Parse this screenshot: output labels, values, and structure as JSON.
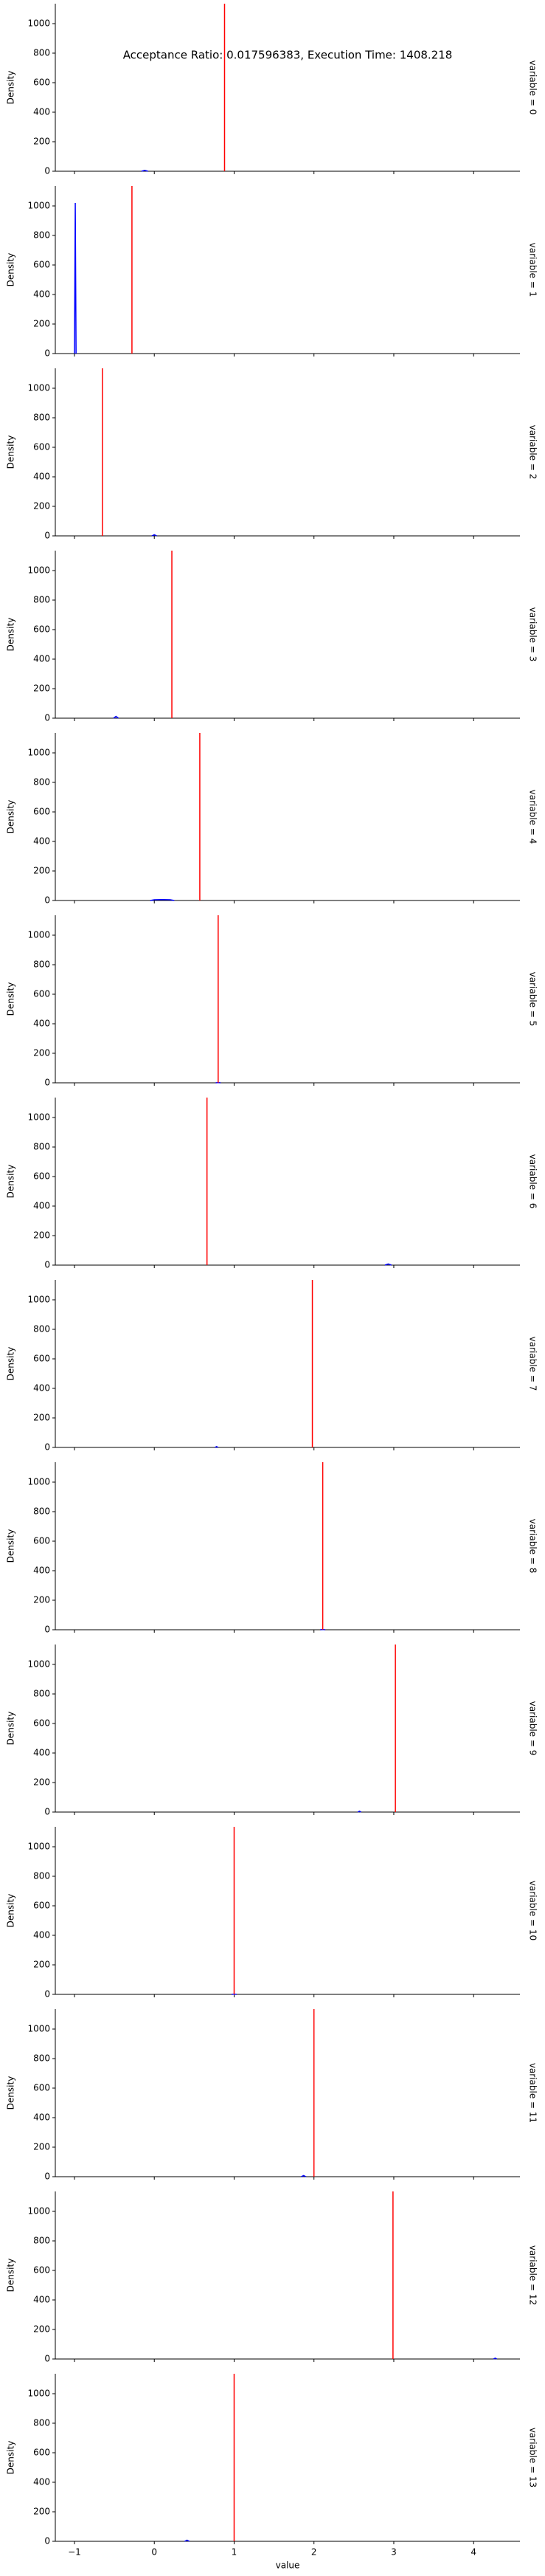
{
  "chart_data": [
    {
      "type": "density",
      "title": "Acceptance Ratio: 0.017596383, Execution Time: 1408.218",
      "facet": "variable = 0",
      "ylabel": "Density",
      "xlim": [
        -1.24,
        4.58
      ],
      "ylim": [
        0,
        1135
      ],
      "yticks": [
        0,
        200,
        400,
        600,
        800,
        1000
      ],
      "xticks": [
        -1,
        0,
        1,
        2,
        3,
        4
      ],
      "true_value": 0.88,
      "true_color": "#ff0000",
      "series": [
        {
          "color": "#0000ff",
          "x": [
            -0.16,
            -0.12,
            -0.08
          ],
          "values": [
            0,
            6,
            0
          ]
        }
      ]
    },
    {
      "type": "density",
      "facet": "variable = 1",
      "ylabel": "Density",
      "xlim": [
        -1.24,
        4.58
      ],
      "ylim": [
        0,
        1135
      ],
      "yticks": [
        0,
        200,
        400,
        600,
        800,
        1000
      ],
      "xticks": [
        -1,
        0,
        1,
        2,
        3,
        4
      ],
      "true_value": -0.28,
      "true_color": "#ff0000",
      "series": [
        {
          "color": "#0000ff",
          "x": [
            -1.0,
            -0.99,
            -0.98
          ],
          "values": [
            0,
            1020,
            0
          ]
        }
      ]
    },
    {
      "type": "density",
      "facet": "variable = 2",
      "ylabel": "Density",
      "xlim": [
        -1.24,
        4.58
      ],
      "ylim": [
        0,
        1135
      ],
      "yticks": [
        0,
        200,
        400,
        600,
        800,
        1000
      ],
      "xticks": [
        -1,
        0,
        1,
        2,
        3,
        4
      ],
      "true_value": -0.65,
      "true_color": "#ff0000",
      "series": [
        {
          "color": "#0000ff",
          "x": [
            -0.03,
            0.0,
            0.03
          ],
          "values": [
            0,
            8,
            0
          ]
        }
      ]
    },
    {
      "type": "density",
      "facet": "variable = 3",
      "ylabel": "Density",
      "xlim": [
        -1.24,
        4.58
      ],
      "ylim": [
        0,
        1135
      ],
      "yticks": [
        0,
        200,
        400,
        600,
        800,
        1000
      ],
      "xticks": [
        -1,
        0,
        1,
        2,
        3,
        4
      ],
      "true_value": 0.22,
      "true_color": "#ff0000",
      "series": [
        {
          "color": "#0000ff",
          "x": [
            -0.51,
            -0.48,
            -0.45
          ],
          "values": [
            0,
            12,
            0
          ]
        }
      ]
    },
    {
      "type": "density",
      "facet": "variable = 4",
      "ylabel": "Density",
      "xlim": [
        -1.24,
        4.58
      ],
      "ylim": [
        0,
        1135
      ],
      "yticks": [
        0,
        200,
        400,
        600,
        800,
        1000
      ],
      "xticks": [
        -1,
        0,
        1,
        2,
        3,
        4
      ],
      "true_value": 0.57,
      "true_color": "#ff0000",
      "series": [
        {
          "color": "#0000ff",
          "x": [
            -0.05,
            0.0,
            0.1,
            0.2,
            0.25
          ],
          "values": [
            0,
            5,
            6,
            5,
            0
          ]
        }
      ]
    },
    {
      "type": "density",
      "facet": "variable = 5",
      "ylabel": "Density",
      "xlim": [
        -1.24,
        4.58
      ],
      "ylim": [
        0,
        1135
      ],
      "yticks": [
        0,
        200,
        400,
        600,
        800,
        1000
      ],
      "xticks": [
        -1,
        0,
        1,
        2,
        3,
        4
      ],
      "true_value": 0.8,
      "true_color": "#ff0000",
      "series": [
        {
          "color": "#0000ff",
          "x": [
            0.77,
            0.8,
            0.83
          ],
          "values": [
            0,
            2,
            0
          ]
        }
      ]
    },
    {
      "type": "density",
      "facet": "variable = 6",
      "ylabel": "Density",
      "xlim": [
        -1.24,
        4.58
      ],
      "ylim": [
        0,
        1135
      ],
      "yticks": [
        0,
        200,
        400,
        600,
        800,
        1000
      ],
      "xticks": [
        -1,
        0,
        1,
        2,
        3,
        4
      ],
      "true_value": 0.66,
      "true_color": "#ff0000",
      "series": [
        {
          "color": "#0000ff",
          "x": [
            2.89,
            2.93,
            2.97
          ],
          "values": [
            0,
            8,
            0
          ]
        }
      ]
    },
    {
      "type": "density",
      "facet": "variable = 7",
      "ylabel": "Density",
      "xlim": [
        -1.24,
        4.58
      ],
      "ylim": [
        0,
        1135
      ],
      "yticks": [
        0,
        200,
        400,
        600,
        800,
        1000
      ],
      "xticks": [
        -1,
        0,
        1,
        2,
        3,
        4
      ],
      "true_value": 1.98,
      "true_color": "#ff0000",
      "series": [
        {
          "color": "#0000ff",
          "x": [
            0.76,
            0.78,
            0.8
          ],
          "values": [
            0,
            6,
            0
          ]
        }
      ]
    },
    {
      "type": "density",
      "facet": "variable = 8",
      "ylabel": "Density",
      "xlim": [
        -1.24,
        4.58
      ],
      "ylim": [
        0,
        1135
      ],
      "yticks": [
        0,
        200,
        400,
        600,
        800,
        1000
      ],
      "xticks": [
        -1,
        0,
        1,
        2,
        3,
        4
      ],
      "true_value": 2.11,
      "true_color": "#ff0000",
      "series": [
        {
          "color": "#0000ff",
          "x": [
            2.08,
            2.11,
            2.14
          ],
          "values": [
            0,
            2,
            0
          ]
        }
      ]
    },
    {
      "type": "density",
      "facet": "variable = 9",
      "ylabel": "Density",
      "xlim": [
        -1.24,
        4.58
      ],
      "ylim": [
        0,
        1135
      ],
      "yticks": [
        0,
        200,
        400,
        600,
        800,
        1000
      ],
      "xticks": [
        -1,
        0,
        1,
        2,
        3,
        4
      ],
      "true_value": 3.02,
      "true_color": "#ff0000",
      "series": [
        {
          "color": "#0000ff",
          "x": [
            2.55,
            2.57,
            2.59
          ],
          "values": [
            0,
            6,
            0
          ]
        }
      ]
    },
    {
      "type": "density",
      "facet": "variable = 10",
      "ylabel": "Density",
      "xlim": [
        -1.24,
        4.58
      ],
      "ylim": [
        0,
        1135
      ],
      "yticks": [
        0,
        200,
        400,
        600,
        800,
        1000
      ],
      "xticks": [
        -1,
        0,
        1,
        2,
        3,
        4
      ],
      "true_value": 1.0,
      "true_color": "#ff0000",
      "series": [
        {
          "color": "#0000ff",
          "x": [
            0.97,
            1.0,
            1.03
          ],
          "values": [
            0,
            2,
            0
          ]
        }
      ]
    },
    {
      "type": "density",
      "facet": "variable = 11",
      "ylabel": "Density",
      "xlim": [
        -1.24,
        4.58
      ],
      "ylim": [
        0,
        1135
      ],
      "yticks": [
        0,
        200,
        400,
        600,
        800,
        1000
      ],
      "xticks": [
        -1,
        0,
        1,
        2,
        3,
        4
      ],
      "true_value": 2.0,
      "true_color": "#ff0000",
      "series": [
        {
          "color": "#0000ff",
          "x": [
            1.84,
            1.87,
            1.9
          ],
          "values": [
            0,
            8,
            0
          ]
        }
      ]
    },
    {
      "type": "density",
      "facet": "variable = 12",
      "ylabel": "Density",
      "xlim": [
        -1.24,
        4.58
      ],
      "ylim": [
        0,
        1135
      ],
      "yticks": [
        0,
        200,
        400,
        600,
        800,
        1000
      ],
      "xticks": [
        -1,
        0,
        1,
        2,
        3,
        4
      ],
      "true_value": 2.99,
      "true_color": "#ff0000",
      "series": [
        {
          "color": "#0000ff",
          "x": [
            4.25,
            4.27,
            4.29
          ],
          "values": [
            0,
            6,
            0
          ]
        }
      ]
    },
    {
      "type": "density",
      "facet": "variable = 13",
      "ylabel": "Density",
      "xlabel": "value",
      "xlim": [
        -1.24,
        4.58
      ],
      "ylim": [
        0,
        1135
      ],
      "yticks": [
        0,
        200,
        400,
        600,
        800,
        1000
      ],
      "xticks": [
        {
          "value": -1,
          "label": "−1"
        },
        0,
        1,
        2,
        3,
        4
      ],
      "true_value": 1.0,
      "true_color": "#ff0000",
      "series": [
        {
          "color": "#0000ff",
          "x": [
            0.38,
            0.41,
            0.44
          ],
          "values": [
            0,
            8,
            0
          ]
        }
      ]
    }
  ]
}
